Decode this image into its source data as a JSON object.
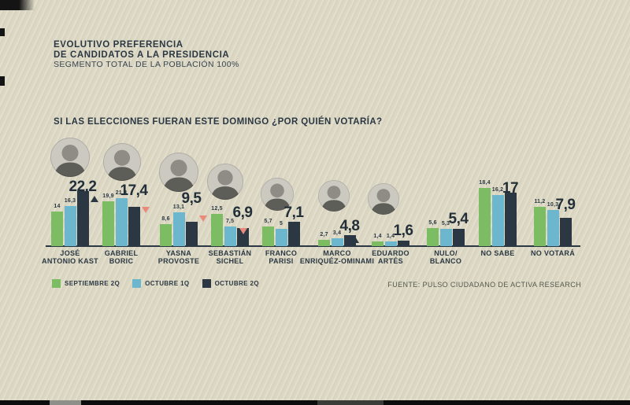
{
  "header": {
    "title_line1": "EVOLUTIVO PREFERENCIA",
    "title_line2": "DE CANDIDATOS A LA PRESIDENCIA",
    "subtitle": "SEGMENTO TOTAL DE LA POBLACIÓN 100%"
  },
  "question": "SI LAS ELECCIONES FUERAN ESTE DOMINGO ¿POR QUIÉN VOTARÍA?",
  "footer": {
    "source": "FUENTE: PULSO CIUDADANO DE ACTIVA RESEARCH"
  },
  "colors": {
    "background": "#dbd7c2",
    "ink": "#2b3844",
    "septiembre_2q": "#7cbc63",
    "octubre_1q": "#6cb7cd",
    "octubre_2q": "#2b3844",
    "trend_up": "#2b3844",
    "trend_down": "#e98a7b"
  },
  "chart_data": {
    "type": "bar",
    "title": "EVOLUTIVO PREFERENCIA DE CANDIDATOS A LA PRESIDENCIA",
    "subtitle": "SEGMENTO TOTAL DE LA POBLACIÓN 100%",
    "legend_position": "bottom-left",
    "grid": false,
    "unit": "%",
    "ylim": [
      0,
      25
    ],
    "series": [
      {
        "name": "SEPTIEMBRE 2Q",
        "color": "#7cbc63"
      },
      {
        "name": "OCTUBRE 1Q",
        "color": "#6cb7cd"
      },
      {
        "name": "OCTUBRE 2Q",
        "color": "#2b3844"
      }
    ],
    "categories": [
      {
        "name": "JOSÉ\nANTONIO KAST",
        "values": [
          14,
          16.3,
          22.2
        ],
        "labels": [
          "14",
          "16,3",
          "22,2"
        ],
        "trend": "up",
        "has_photo": true
      },
      {
        "name": "GABRIEL\nBORIC",
        "values": [
          19.9,
          21.3,
          17.4
        ],
        "labels": [
          "19,9",
          "21,3",
          "17,4"
        ],
        "trend": "down",
        "has_photo": true
      },
      {
        "name": "YASNA\nPROVOSTE",
        "values": [
          8.6,
          13.1,
          9.5
        ],
        "labels": [
          "8,6",
          "13,1",
          "9,5"
        ],
        "trend": "down",
        "has_photo": true
      },
      {
        "name": "SEBASTIÁN\nSICHEL",
        "values": [
          12.5,
          7.5,
          6.9
        ],
        "labels": [
          "12,5",
          "7,5",
          "6,9"
        ],
        "trend": "down",
        "has_photo": true
      },
      {
        "name": "FRANCO\nPARISI",
        "values": [
          5.7,
          5,
          7.1
        ],
        "labels": [
          "5,7",
          "5",
          "7,1"
        ],
        "trend": "up",
        "has_photo": true
      },
      {
        "name": "MARCO\nENRIQUÉZ-OMINAMI",
        "values": [
          2.7,
          3.4,
          4.8
        ],
        "labels": [
          "2,7",
          "3,4",
          "4,8"
        ],
        "trend": "up",
        "has_photo": true
      },
      {
        "name": "EDUARDO\nARTÉS",
        "values": [
          1.4,
          1.4,
          1.6
        ],
        "labels": [
          "1,4",
          "1,4",
          "1,6"
        ],
        "trend": null,
        "has_photo": true
      },
      {
        "name": "NULO/\nBLANCO",
        "values": [
          5.6,
          5.3,
          5.4
        ],
        "labels": [
          "5,6",
          "5,3",
          "5,4"
        ],
        "trend": null,
        "has_photo": false
      },
      {
        "name": "NO SABE",
        "values": [
          18.4,
          16.2,
          17
        ],
        "labels": [
          "18,4",
          "16,2",
          "17"
        ],
        "trend": null,
        "has_photo": false
      },
      {
        "name": "NO VOTARÁ",
        "values": [
          11.2,
          10.3,
          7.9
        ],
        "labels": [
          "11,2",
          "10,3",
          "7,9"
        ],
        "trend": null,
        "has_photo": false
      }
    ]
  }
}
